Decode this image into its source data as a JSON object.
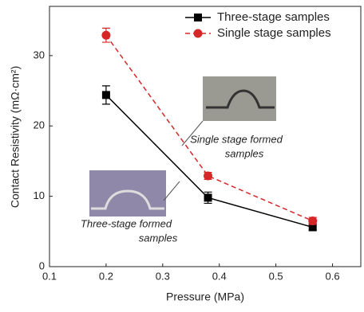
{
  "chart_data": {
    "type": "line",
    "x_label": "Pressure (MPa)",
    "y_label": "Contact Resistivity (mΩ·cm²)",
    "x": [
      0.2,
      0.38,
      0.565
    ],
    "series": [
      {
        "name": "Three-stage samples",
        "color": "#000000",
        "marker": "square",
        "dash": false,
        "values": [
          24.4,
          9.8,
          5.6
        ],
        "errors": [
          1.3,
          0.8,
          0.4
        ]
      },
      {
        "name": "Single stage samples",
        "color": "#d62728",
        "marker": "circle",
        "dash": true,
        "values": [
          32.9,
          12.9,
          6.5
        ],
        "errors": [
          1.0,
          0.5,
          0.5
        ]
      }
    ],
    "xlim": [
      0.1,
      0.65
    ],
    "xticks": [
      0.1,
      0.2,
      0.3,
      0.4,
      0.5,
      0.6
    ],
    "ylim": [
      0,
      37
    ],
    "yticks": [
      0,
      10,
      20,
      30
    ],
    "annotations": [
      {
        "lines": [
          "Single stage formed",
          "samples"
        ]
      },
      {
        "lines": [
          "Three-stage formed",
          "samples"
        ]
      }
    ]
  }
}
